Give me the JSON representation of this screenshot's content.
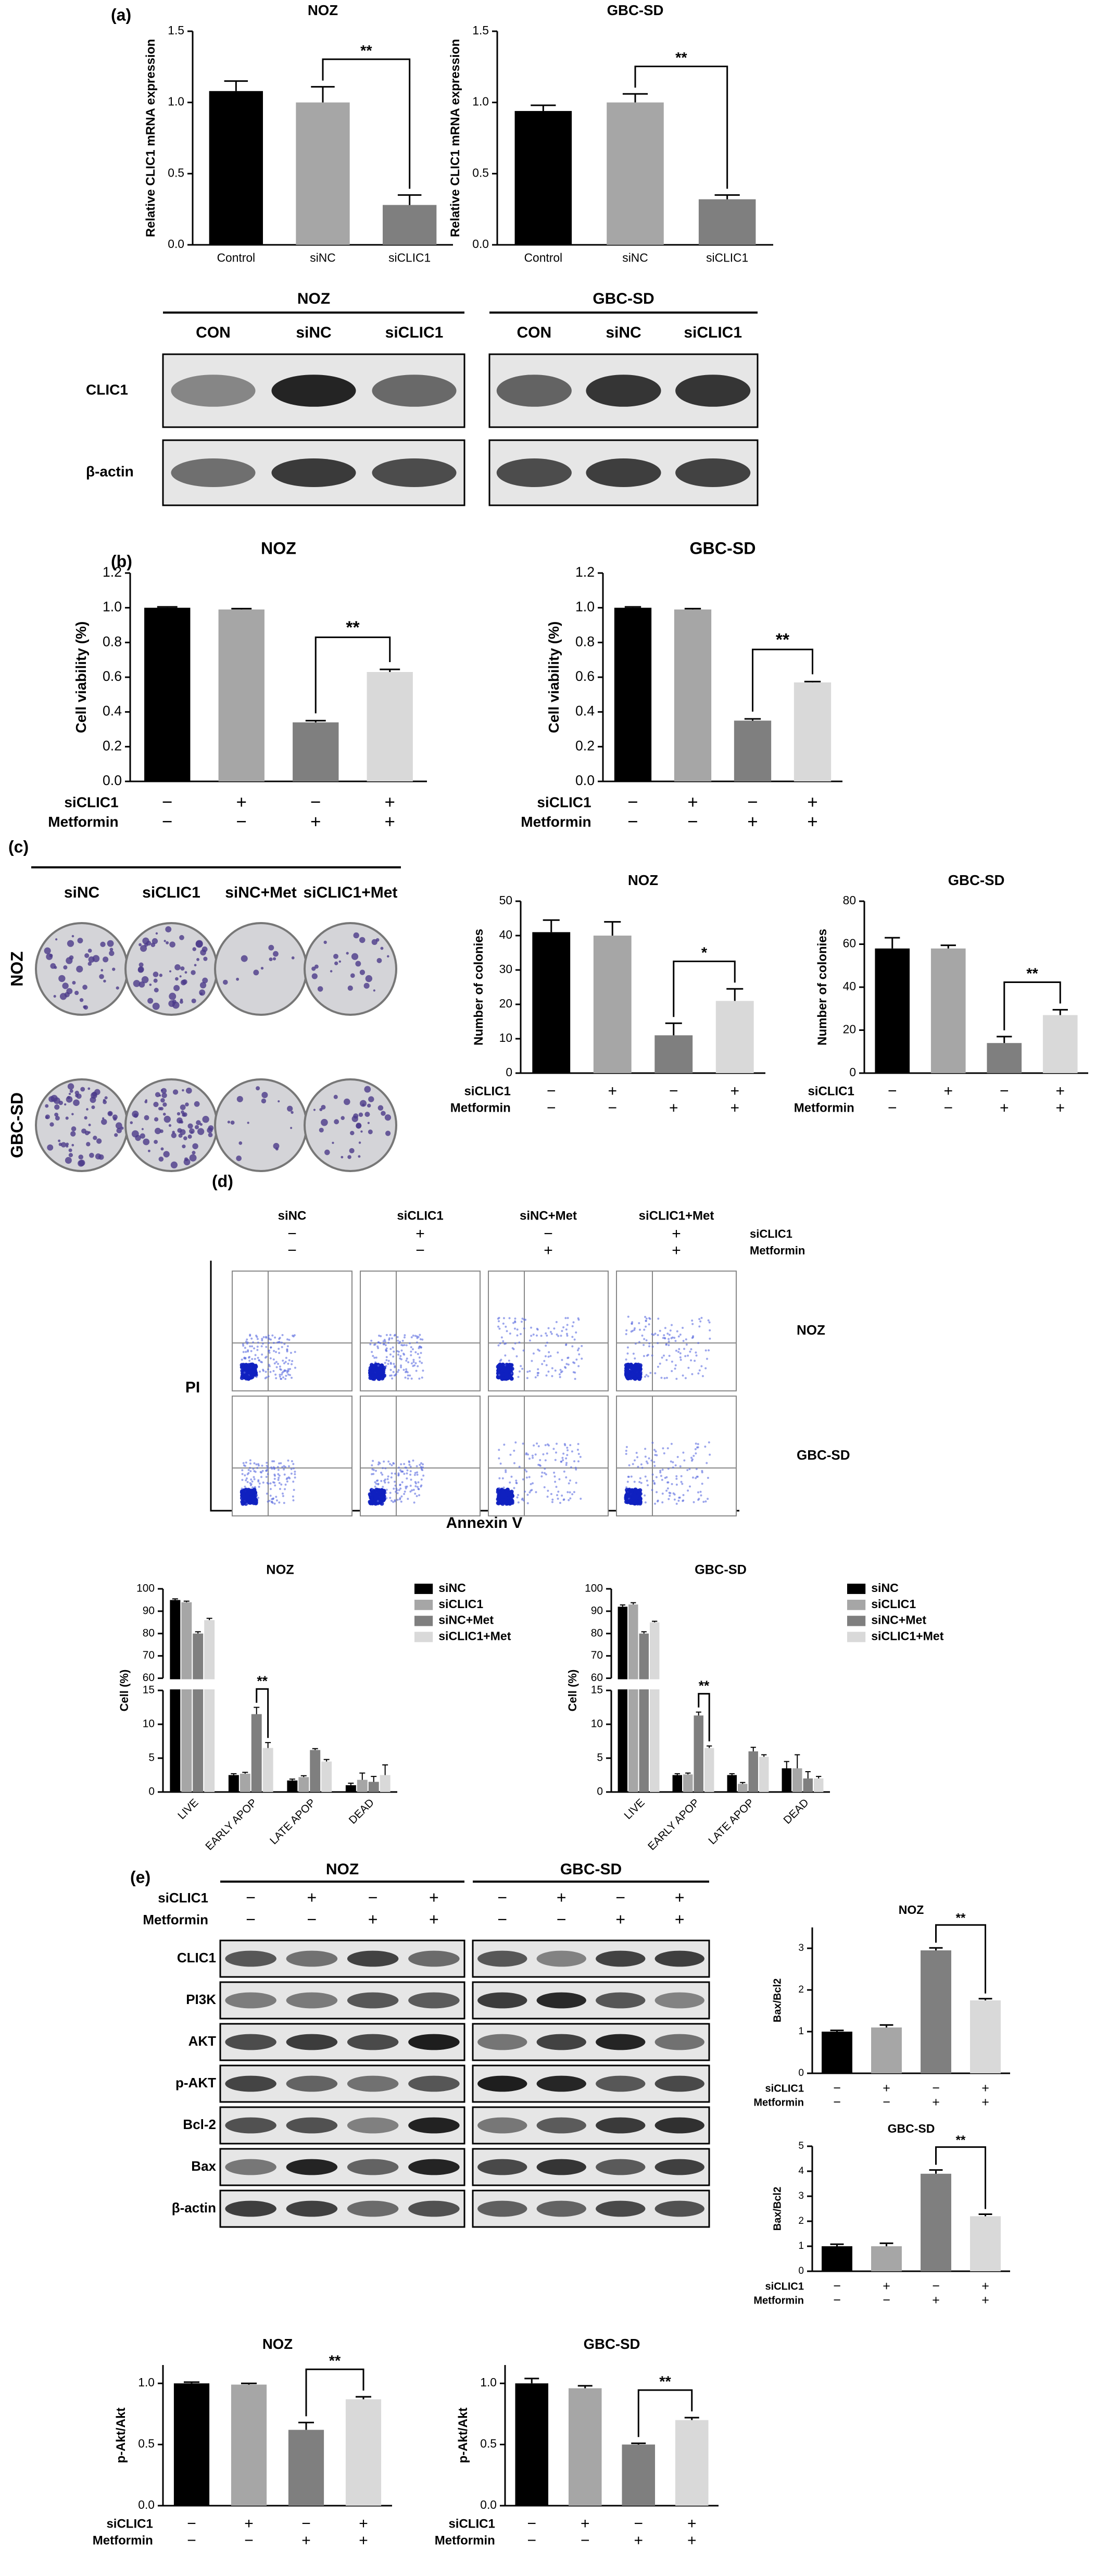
{
  "panel_labels": [
    "(a)",
    "(b)",
    "(c)",
    "(d)",
    "(e)"
  ],
  "blot_a": {
    "groups": [
      {
        "title": "NOZ",
        "lanes": [
          "CON",
          "siNC",
          "siCLIC1"
        ]
      },
      {
        "title": "GBC-SD",
        "lanes": [
          "CON",
          "siNC",
          "siCLIC1"
        ]
      }
    ],
    "rows": [
      "CLIC1",
      "β-actin"
    ]
  },
  "plates": {
    "columns": [
      "siNC",
      "siCLIC1",
      "siNC+Met",
      "siCLIC1+Met"
    ],
    "rows": [
      "NOZ",
      "GBC-SD"
    ]
  },
  "flow": {
    "columns": [
      "siNC",
      "siCLIC1",
      "siNC+Met",
      "siCLIC1+Met"
    ],
    "conditions": [
      {
        "name": "siCLIC1",
        "signs": [
          "−",
          "+",
          "−",
          "+"
        ]
      },
      {
        "name": "Metformin",
        "signs": [
          "−",
          "−",
          "+",
          "+"
        ]
      }
    ],
    "rows": [
      "NOZ",
      "GBC-SD"
    ],
    "xlabel": "Annexin V",
    "ylabel": "PI"
  },
  "blot_e": {
    "groups": [
      "NOZ",
      "GBC-SD"
    ],
    "conditions": [
      {
        "name": "siCLIC1",
        "signs": [
          "−",
          "+",
          "−",
          "+",
          "−",
          "+",
          "−",
          "+"
        ]
      },
      {
        "name": "Metformin",
        "signs": [
          "−",
          "−",
          "+",
          "+",
          "−",
          "−",
          "+",
          "+"
        ]
      }
    ],
    "rows": [
      "CLIC1",
      "PI3K",
      "AKT",
      "p-AKT",
      "Bcl-2",
      "Bax",
      "β-actin"
    ]
  },
  "chart_data": [
    {
      "type": "bar",
      "title": "NOZ",
      "ylabel": "Relative CLIC1 mRNA expression",
      "categories": [
        "Control",
        "siNC",
        "siCLIC1"
      ],
      "values": [
        1.08,
        1.0,
        0.28
      ],
      "errors": [
        0.07,
        0.11,
        0.07
      ],
      "colors": [
        "#000000",
        "#a6a6a6",
        "#7f7f7f"
      ],
      "ylim": [
        0,
        1.5
      ],
      "yticks": [
        {
          "value": 0,
          "label": "0.0"
        },
        0.5,
        {
          "value": 1,
          "label": "1.0"
        },
        1.5
      ],
      "significance": [
        {
          "label": "**",
          "from": 1,
          "to": 2
        }
      ]
    },
    {
      "type": "bar",
      "title": "GBC-SD",
      "ylabel": "Relative CLIC1 mRNA expression",
      "categories": [
        "Control",
        "siNC",
        "siCLIC1"
      ],
      "values": [
        0.94,
        1.0,
        0.32
      ],
      "errors": [
        0.04,
        0.06,
        0.03
      ],
      "colors": [
        "#000000",
        "#a6a6a6",
        "#7f7f7f"
      ],
      "ylim": [
        0,
        1.5
      ],
      "yticks": [
        {
          "value": 0,
          "label": "0.0"
        },
        0.5,
        {
          "value": 1,
          "label": "1.0"
        },
        1.5
      ],
      "significance": [
        {
          "label": "**",
          "from": 1,
          "to": 2
        }
      ]
    },
    {
      "type": "bar",
      "title": "NOZ",
      "ylabel": "Cell viability (%)",
      "values": [
        1.0,
        0.99,
        0.34,
        0.63
      ],
      "errors": [
        0.005,
        0.005,
        0.01,
        0.015
      ],
      "colors": [
        "#000000",
        "#a6a6a6",
        "#7f7f7f",
        "#d9d9d9"
      ],
      "ylim": [
        0,
        1.2
      ],
      "yticks": [
        {
          "value": 0,
          "label": "0.0"
        },
        0.2,
        0.4,
        0.6,
        0.8,
        {
          "value": 1,
          "label": "1.0"
        },
        1.2
      ],
      "conditions": [
        {
          "name": "siCLIC1",
          "signs": [
            "−",
            "+",
            "−",
            "+"
          ]
        },
        {
          "name": "Metformin",
          "signs": [
            "−",
            "−",
            "+",
            "+"
          ]
        }
      ],
      "significance": [
        {
          "label": "**",
          "from": 2,
          "to": 3
        }
      ]
    },
    {
      "type": "bar",
      "title": "GBC-SD",
      "ylabel": "Cell viability (%)",
      "values": [
        1.0,
        0.99,
        0.35,
        0.57
      ],
      "errors": [
        0.005,
        0.005,
        0.01,
        0.005
      ],
      "colors": [
        "#000000",
        "#a6a6a6",
        "#7f7f7f",
        "#d9d9d9"
      ],
      "ylim": [
        0,
        1.2
      ],
      "yticks": [
        {
          "value": 0,
          "label": "0.0"
        },
        0.2,
        0.4,
        0.6,
        0.8,
        {
          "value": 1,
          "label": "1.0"
        },
        1.2
      ],
      "conditions": [
        {
          "name": "siCLIC1",
          "signs": [
            "−",
            "+",
            "−",
            "+"
          ]
        },
        {
          "name": "Metformin",
          "signs": [
            "−",
            "−",
            "+",
            "+"
          ]
        }
      ],
      "significance": [
        {
          "label": "**",
          "from": 2,
          "to": 3
        }
      ]
    },
    {
      "type": "bar",
      "title": "NOZ",
      "ylabel": "Number of colonies",
      "values": [
        41,
        40,
        11,
        21
      ],
      "errors": [
        3.5,
        4,
        3.5,
        3.5
      ],
      "colors": [
        "#000000",
        "#a6a6a6",
        "#7f7f7f",
        "#d9d9d9"
      ],
      "ylim": [
        0,
        50
      ],
      "yticks": [
        0,
        10,
        20,
        30,
        40,
        50
      ],
      "conditions": [
        {
          "name": "siCLIC1",
          "signs": [
            "−",
            "+",
            "−",
            "+"
          ]
        },
        {
          "name": "Metformin",
          "signs": [
            "−",
            "−",
            "+",
            "+"
          ]
        }
      ],
      "significance": [
        {
          "label": "*",
          "from": 2,
          "to": 3
        }
      ]
    },
    {
      "type": "bar",
      "title": "GBC-SD",
      "ylabel": "Number of colonies",
      "values": [
        58,
        58,
        14,
        27
      ],
      "errors": [
        5,
        1.5,
        3,
        2.5
      ],
      "colors": [
        "#000000",
        "#a6a6a6",
        "#7f7f7f",
        "#d9d9d9"
      ],
      "ylim": [
        0,
        80
      ],
      "yticks": [
        0,
        20,
        40,
        60,
        80
      ],
      "conditions": [
        {
          "name": "siCLIC1",
          "signs": [
            "−",
            "+",
            "−",
            "+"
          ]
        },
        {
          "name": "Metformin",
          "signs": [
            "−",
            "−",
            "+",
            "+"
          ]
        }
      ],
      "significance": [
        {
          "label": "**",
          "from": 2,
          "to": 3
        }
      ]
    },
    {
      "type": "grouped-bar",
      "title": "NOZ",
      "ylabel": "Cell (%)",
      "categories": [
        "LIVE",
        "EARLY APOP",
        "LATE APOP",
        "DEAD"
      ],
      "series": [
        {
          "name": "siNC",
          "color": "#000000",
          "values": [
            95,
            2.5,
            1.7,
            1.0
          ],
          "errors": [
            0.5,
            0.2,
            0.2,
            0.3
          ]
        },
        {
          "name": "siCLIC1",
          "color": "#a6a6a6",
          "values": [
            94,
            2.7,
            2.2,
            1.8
          ],
          "errors": [
            0.5,
            0.2,
            0.2,
            1.0
          ]
        },
        {
          "name": "siNC+Met",
          "color": "#7f7f7f",
          "values": [
            80,
            11.5,
            6.2,
            1.5
          ],
          "errors": [
            0.8,
            1.0,
            0.2,
            0.8
          ]
        },
        {
          "name": "siCLIC1+Met",
          "color": "#d9d9d9",
          "values": [
            86,
            6.5,
            4.5,
            2.5
          ],
          "errors": [
            0.8,
            0.8,
            0.3,
            1.5
          ]
        }
      ],
      "ylim": [
        0,
        100
      ],
      "ybreak": [
        15,
        60
      ],
      "yticks": [
        0,
        5,
        10,
        15,
        60,
        70,
        80,
        90,
        100
      ],
      "significance": [
        {
          "label": "**",
          "category": 1,
          "from": 2,
          "to": 3
        }
      ]
    },
    {
      "type": "grouped-bar",
      "title": "GBC-SD",
      "ylabel": "Cell (%)",
      "categories": [
        "LIVE",
        "EARLY APOP",
        "LATE APOP",
        "DEAD"
      ],
      "series": [
        {
          "name": "siNC",
          "color": "#000000",
          "values": [
            92,
            2.5,
            2.5,
            3.5
          ],
          "errors": [
            0.8,
            0.2,
            0.2,
            1.0
          ]
        },
        {
          "name": "siCLIC1",
          "color": "#a6a6a6",
          "values": [
            93,
            2.6,
            1.2,
            3.5
          ],
          "errors": [
            0.8,
            0.2,
            0.2,
            2.0
          ]
        },
        {
          "name": "siNC+Met",
          "color": "#7f7f7f",
          "values": [
            80,
            11.3,
            6.0,
            2.0
          ],
          "errors": [
            0.8,
            0.5,
            0.6,
            1.0
          ]
        },
        {
          "name": "siCLIC1+Met",
          "color": "#d9d9d9",
          "values": [
            85,
            6.5,
            5.2,
            2.0
          ],
          "errors": [
            0.5,
            0.3,
            0.3,
            0.3
          ]
        }
      ],
      "ylim": [
        0,
        100
      ],
      "ybreak": [
        15,
        60
      ],
      "yticks": [
        0,
        5,
        10,
        15,
        60,
        70,
        80,
        90,
        100
      ],
      "significance": [
        {
          "label": "**",
          "category": 1,
          "from": 2,
          "to": 3
        }
      ]
    },
    {
      "type": "bar",
      "title": "NOZ",
      "ylabel": "Bax/Bcl2",
      "values": [
        1.0,
        1.1,
        2.95,
        1.75
      ],
      "errors": [
        0.03,
        0.06,
        0.06,
        0.04
      ],
      "colors": [
        "#000000",
        "#a6a6a6",
        "#7f7f7f",
        "#d9d9d9"
      ],
      "ylim": [
        0,
        3.5
      ],
      "yticks": [
        0,
        1,
        2,
        3
      ],
      "conditions": [
        {
          "name": "siCLIC1",
          "signs": [
            "−",
            "+",
            "−",
            "+"
          ]
        },
        {
          "name": "Metformin",
          "signs": [
            "−",
            "−",
            "+",
            "+"
          ]
        }
      ],
      "significance": [
        {
          "label": "**",
          "from": 2,
          "to": 3
        }
      ]
    },
    {
      "type": "bar",
      "title": "GBC-SD",
      "ylabel": "Bax/Bcl2",
      "values": [
        1.0,
        1.0,
        3.9,
        2.2
      ],
      "errors": [
        0.08,
        0.12,
        0.15,
        0.08
      ],
      "colors": [
        "#000000",
        "#a6a6a6",
        "#7f7f7f",
        "#d9d9d9"
      ],
      "ylim": [
        0,
        5
      ],
      "yticks": [
        0,
        1,
        2,
        3,
        4,
        5
      ],
      "conditions": [
        {
          "name": "siCLIC1",
          "signs": [
            "−",
            "+",
            "−",
            "+"
          ]
        },
        {
          "name": "Metformin",
          "signs": [
            "−",
            "−",
            "+",
            "+"
          ]
        }
      ],
      "significance": [
        {
          "label": "**",
          "from": 2,
          "to": 3
        }
      ]
    },
    {
      "type": "bar",
      "title": "NOZ",
      "ylabel": "p-Akt/Akt",
      "values": [
        1.0,
        0.99,
        0.62,
        0.87
      ],
      "errors": [
        0.01,
        0.01,
        0.06,
        0.02
      ],
      "colors": [
        "#000000",
        "#a6a6a6",
        "#7f7f7f",
        "#d9d9d9"
      ],
      "ylim": [
        0,
        1.15
      ],
      "yticks": [
        {
          "value": 0,
          "label": "0.0"
        },
        0.5,
        {
          "value": 1,
          "label": "1.0"
        }
      ],
      "conditions": [
        {
          "name": "siCLIC1",
          "signs": [
            "−",
            "+",
            "−",
            "+"
          ]
        },
        {
          "name": "Metformin",
          "signs": [
            "−",
            "−",
            "+",
            "+"
          ]
        }
      ],
      "significance": [
        {
          "label": "**",
          "from": 2,
          "to": 3
        }
      ]
    },
    {
      "type": "bar",
      "title": "GBC-SD",
      "ylabel": "p-Akt/Akt",
      "values": [
        1.0,
        0.96,
        0.5,
        0.7
      ],
      "errors": [
        0.04,
        0.02,
        0.01,
        0.02
      ],
      "colors": [
        "#000000",
        "#a6a6a6",
        "#7f7f7f",
        "#d9d9d9"
      ],
      "ylim": [
        0,
        1.15
      ],
      "yticks": [
        {
          "value": 0,
          "label": "0.0"
        },
        0.5,
        {
          "value": 1,
          "label": "1.0"
        }
      ],
      "conditions": [
        {
          "name": "siCLIC1",
          "signs": [
            "−",
            "+",
            "−",
            "+"
          ]
        },
        {
          "name": "Metformin",
          "signs": [
            "−",
            "−",
            "+",
            "+"
          ]
        }
      ],
      "significance": [
        {
          "label": "**",
          "from": 2,
          "to": 3
        }
      ]
    }
  ]
}
